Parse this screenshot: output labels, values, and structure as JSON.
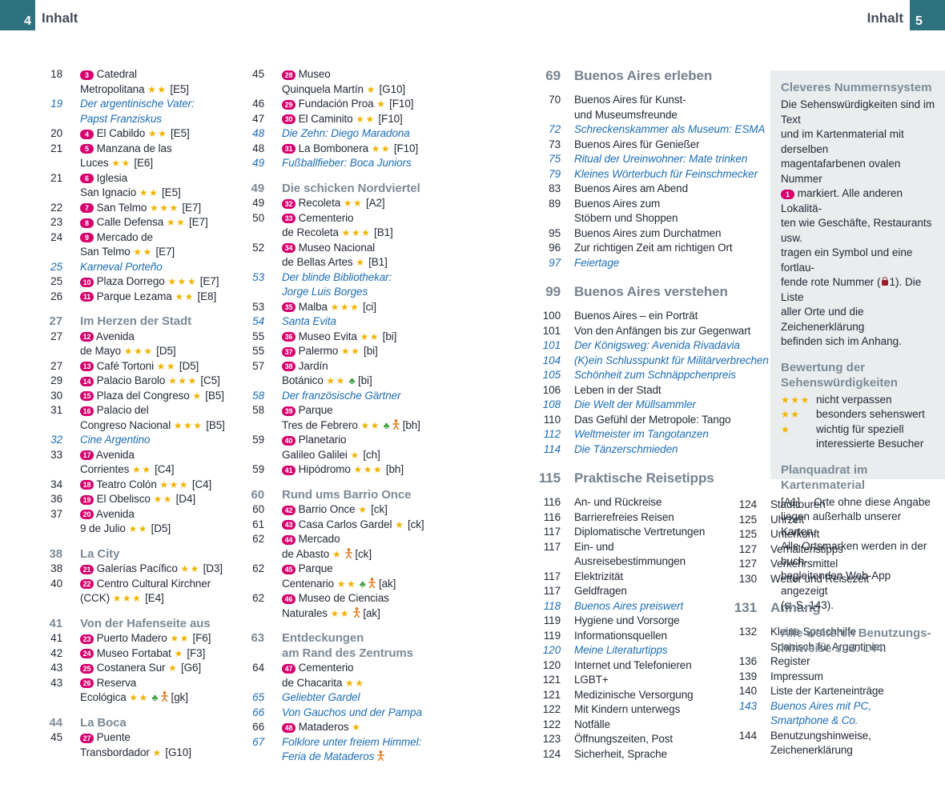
{
  "header": {
    "left_page_number": "4",
    "left_label": "Inhalt",
    "right_label": "Inhalt",
    "right_page_number": "5"
  },
  "colors": {
    "teal": "#2e727f",
    "magenta_badge": "#d5006d",
    "star_gold": "#f0b400",
    "feature_blue": "#1e6eb3",
    "section_gray": "#7d8a96",
    "nature_green": "#3f9d3f",
    "family_orange": "#e07b20",
    "panel_bg": "#e9edee",
    "lock_red": "#9d1b2c"
  },
  "toc": {
    "columns": [
      [
        {
          "page": "18",
          "style": "entry",
          "lines": [
            "{n3} Catedral",
            "Metropolitana {s2} [E5]"
          ]
        },
        {
          "page": "19",
          "style": "feature",
          "lines": [
            "Der argentinische Vater:",
            "Papst Franziskus"
          ]
        },
        {
          "page": "20",
          "style": "entry",
          "lines": [
            "{n4} El Cabildo {s2} [E5]"
          ]
        },
        {
          "page": "21",
          "style": "entry",
          "lines": [
            "{n5} Manzana de las",
            "Luces {s2} [E6]"
          ]
        },
        {
          "page": "21",
          "style": "entry",
          "lines": [
            "{n6} Iglesia",
            "San Ignacio {s2} [E5]"
          ]
        },
        {
          "page": "22",
          "style": "entry",
          "lines": [
            "{n7} San Telmo {s3} [E7]"
          ]
        },
        {
          "page": "23",
          "style": "entry",
          "lines": [
            "{n8} Calle Defensa {s2} [E7]"
          ]
        },
        {
          "page": "24",
          "style": "entry",
          "lines": [
            "{n9} Mercado de",
            "San Telmo {s2} [E7]"
          ]
        },
        {
          "page": "25",
          "style": "feature",
          "lines": [
            "Karneval Porteño"
          ]
        },
        {
          "page": "25",
          "style": "entry",
          "lines": [
            "{n10} Plaza Dorrego {s3} [E7]"
          ]
        },
        {
          "page": "26",
          "style": "entry",
          "lines": [
            "{n11} Parque Lezama {s2} [E8]"
          ]
        },
        {
          "page": "27",
          "style": "header",
          "lines": [
            "Im Herzen der Stadt"
          ]
        },
        {
          "page": "27",
          "style": "entry",
          "lines": [
            "{n12} Avenida",
            "de Mayo {s3} [D5]"
          ]
        },
        {
          "page": "27",
          "style": "entry",
          "lines": [
            "{n13} Café Tortoni {s2} [D5]"
          ]
        },
        {
          "page": "29",
          "style": "entry",
          "lines": [
            "{n14} Palacio Barolo {s3} [C5]"
          ]
        },
        {
          "page": "30",
          "style": "entry",
          "lines": [
            "{n15} Plaza del Congreso {s1} [B5]"
          ]
        },
        {
          "page": "31",
          "style": "entry",
          "lines": [
            "{n16} Palacio del",
            "Congreso Nacional {s3} [B5]"
          ]
        },
        {
          "page": "32",
          "style": "feature",
          "lines": [
            "Cine Argentino"
          ]
        },
        {
          "page": "33",
          "style": "entry",
          "lines": [
            "{n17} Avenida",
            "Corrientes {s2} [C4]"
          ]
        },
        {
          "page": "34",
          "style": "entry",
          "lines": [
            "{n18} Teatro Colón {s3} [C4]"
          ]
        },
        {
          "page": "36",
          "style": "entry",
          "lines": [
            "{n19} El Obelisco {s2} [D4]"
          ]
        },
        {
          "page": "37",
          "style": "entry",
          "lines": [
            "{n20} Avenida",
            "9 de Julio {s2} [D5]"
          ]
        },
        {
          "page": "38",
          "style": "header",
          "lines": [
            "La City"
          ]
        },
        {
          "page": "38",
          "style": "entry",
          "lines": [
            "{n21} Galerías Pacífico {s2} [D3]"
          ]
        },
        {
          "page": "40",
          "style": "entry",
          "lines": [
            "{n22} Centro Cultural Kirchner",
            "(CCK) {s3} [E4]"
          ]
        },
        {
          "page": "41",
          "style": "header",
          "lines": [
            "Von der Hafenseite aus"
          ]
        },
        {
          "page": "41",
          "style": "entry",
          "lines": [
            "{n23} Puerto Madero {s2} [F6]"
          ]
        },
        {
          "page": "42",
          "style": "entry",
          "lines": [
            "{n24} Museo Fortabat {s1} [F3]"
          ]
        },
        {
          "page": "43",
          "style": "entry",
          "lines": [
            "{n25} Costanera Sur {s1} [G6]"
          ]
        },
        {
          "page": "43",
          "style": "entry",
          "lines": [
            "{n26} Reserva",
            "Ecológica {s2} {g} {p} [gk]"
          ]
        },
        {
          "page": "44",
          "style": "header",
          "lines": [
            "La Boca"
          ]
        },
        {
          "page": "45",
          "style": "entry",
          "lines": [
            "{n27} Puente",
            "Transbordador {s1} [G10]"
          ]
        }
      ],
      [
        {
          "page": "45",
          "style": "entry",
          "lines": [
            "{n28} Museo",
            "Quinquela Martín {s1} [G10]"
          ]
        },
        {
          "page": "46",
          "style": "entry",
          "lines": [
            "{n29} Fundación Proa {s1} [F10]"
          ]
        },
        {
          "page": "47",
          "style": "entry",
          "lines": [
            "{n30} El Caminito {s2} [F10]"
          ]
        },
        {
          "page": "48",
          "style": "feature",
          "lines": [
            "Die Zehn: Diego Maradona"
          ]
        },
        {
          "page": "48",
          "style": "entry",
          "lines": [
            "{n31} La Bombonera {s2} [F10]"
          ]
        },
        {
          "page": "49",
          "style": "feature",
          "lines": [
            "Fußballfieber: Boca Juniors"
          ]
        },
        {
          "page": "49",
          "style": "header",
          "lines": [
            "Die schicken Nordviertel"
          ]
        },
        {
          "page": "49",
          "style": "entry",
          "lines": [
            "{n32} Recoleta {s2} [A2]"
          ]
        },
        {
          "page": "50",
          "style": "entry",
          "lines": [
            "{n33} Cementerio",
            "de Recoleta {s3} [B1]"
          ]
        },
        {
          "page": "52",
          "style": "entry",
          "lines": [
            "{n34} Museo Nacional",
            "de Bellas Artes {s1} [B1]"
          ]
        },
        {
          "page": "53",
          "style": "feature",
          "lines": [
            "Der blinde Bibliothekar:",
            "Jorge Luis Borges"
          ]
        },
        {
          "page": "53",
          "style": "entry",
          "lines": [
            "{n35} Malba {s3} [ci]"
          ]
        },
        {
          "page": "54",
          "style": "feature",
          "lines": [
            "Santa Evita"
          ]
        },
        {
          "page": "55",
          "style": "entry",
          "lines": [
            "{n36} Museo Evita {s2} [bi]"
          ]
        },
        {
          "page": "55",
          "style": "entry",
          "lines": [
            "{n37} Palermo {s2} [bi]"
          ]
        },
        {
          "page": "57",
          "style": "entry",
          "lines": [
            "{n38} Jardín",
            "Botánico {s2} {g} [bi]"
          ]
        },
        {
          "page": "58",
          "style": "feature",
          "lines": [
            "Der französische Gärtner"
          ]
        },
        {
          "page": "58",
          "style": "entry",
          "lines": [
            "{n39} Parque",
            "Tres de Febrero {s2} {g} {p} [bh]"
          ]
        },
        {
          "page": "59",
          "style": "entry",
          "lines": [
            "{n40} Planetario",
            "Galileo Galilei {s1} [ch]"
          ]
        },
        {
          "page": "59",
          "style": "entry",
          "lines": [
            "{n41} Hipódromo {s3} [bh]"
          ]
        },
        {
          "page": "60",
          "style": "header",
          "lines": [
            "Rund ums Barrio Once"
          ]
        },
        {
          "page": "60",
          "style": "entry",
          "lines": [
            "{n42} Barrio Once {s1} [ck]"
          ]
        },
        {
          "page": "61",
          "style": "entry",
          "lines": [
            "{n43} Casa Carlos Gardel {s1} [ck]"
          ]
        },
        {
          "page": "62",
          "style": "entry",
          "lines": [
            "{n44} Mercado",
            "de Abasto {s1} {p} [ck]"
          ]
        },
        {
          "page": "62",
          "style": "entry",
          "lines": [
            "{n45} Parque",
            "Centenario {s2} {g} {p} [ak]"
          ]
        },
        {
          "page": "62",
          "style": "entry",
          "lines": [
            "{n46} Museo de Ciencias",
            "Naturales {s2} {p} [ak]"
          ]
        },
        {
          "page": "63",
          "style": "header",
          "lines": [
            "Entdeckungen",
            "am Rand des Zentrums"
          ]
        },
        {
          "page": "64",
          "style": "entry",
          "lines": [
            "{n47} Cementerio",
            "de Chacarita {s2}"
          ]
        },
        {
          "page": "65",
          "style": "feature",
          "lines": [
            "Geliebter Gardel"
          ]
        },
        {
          "page": "66",
          "style": "feature",
          "lines": [
            "Von Gauchos und der Pampa"
          ]
        },
        {
          "page": "66",
          "style": "entry",
          "lines": [
            "{n48} Mataderos {s1}"
          ]
        },
        {
          "page": "67",
          "style": "feature",
          "lines": [
            "Folklore unter freiem Himmel:",
            "Feria de Mataderos {p}"
          ]
        }
      ],
      [
        {
          "page": "69",
          "style": "section",
          "lines": [
            "Buenos Aires erleben"
          ]
        },
        {
          "page": "70",
          "style": "plain",
          "lines": [
            "Buenos Aires für Kunst-",
            "und Museumsfreunde"
          ]
        },
        {
          "page": "72",
          "style": "feature",
          "lines": [
            "Schreckenskammer als Museum: ESMA"
          ]
        },
        {
          "page": "73",
          "style": "plain",
          "lines": [
            "Buenos Aires für Genießer"
          ]
        },
        {
          "page": "75",
          "style": "feature",
          "lines": [
            "Ritual der Ureinwohner: Mate trinken"
          ]
        },
        {
          "page": "79",
          "style": "feature",
          "lines": [
            "Kleines Wörterbuch für Feinschmecker"
          ]
        },
        {
          "page": "83",
          "style": "plain",
          "lines": [
            "Buenos Aires am Abend"
          ]
        },
        {
          "page": "89",
          "style": "plain",
          "lines": [
            "Buenos Aires zum",
            "Stöbern und Shoppen"
          ]
        },
        {
          "page": "95",
          "style": "plain",
          "lines": [
            "Buenos Aires zum Durchatmen"
          ]
        },
        {
          "page": "96",
          "style": "plain",
          "lines": [
            "Zur richtigen Zeit am richtigen Ort"
          ]
        },
        {
          "page": "97",
          "style": "feature",
          "lines": [
            "Feiertage"
          ]
        },
        {
          "page": "99",
          "style": "section",
          "lines": [
            "Buenos Aires verstehen"
          ]
        },
        {
          "page": "100",
          "style": "plain",
          "lines": [
            "Buenos Aires – ein Porträt"
          ]
        },
        {
          "page": "101",
          "style": "plain",
          "lines": [
            "Von den Anfängen bis zur Gegenwart"
          ]
        },
        {
          "page": "101",
          "style": "feature",
          "lines": [
            "Der Königsweg: Avenida Rivadavia"
          ]
        },
        {
          "page": "104",
          "style": "feature",
          "lines": [
            "(K)ein Schlusspunkt für Militärverbrechen"
          ]
        },
        {
          "page": "105",
          "style": "feature",
          "lines": [
            "Schönheit zum Schnäppchenpreis"
          ]
        },
        {
          "page": "106",
          "style": "plain",
          "lines": [
            "Leben in der Stadt"
          ]
        },
        {
          "page": "108",
          "style": "feature",
          "lines": [
            "Die Welt der Müllsammler"
          ]
        },
        {
          "page": "110",
          "style": "plain",
          "lines": [
            "Das Gefühl der Metropole: Tango"
          ]
        },
        {
          "page": "112",
          "style": "feature",
          "lines": [
            "Weltmeister im Tangotanzen"
          ]
        },
        {
          "page": "114",
          "style": "feature",
          "lines": [
            "Die Tänzerschmieden"
          ]
        },
        {
          "page": "115",
          "style": "section",
          "lines": [
            "Praktische Reisetipps"
          ]
        },
        {
          "page": "116",
          "style": "plain",
          "lines": [
            "An- und Rückreise"
          ]
        },
        {
          "page": "116",
          "style": "plain",
          "lines": [
            "Barrierefreies Reisen"
          ]
        },
        {
          "page": "117",
          "style": "plain",
          "lines": [
            "Diplomatische Vertretungen"
          ]
        },
        {
          "page": "117",
          "style": "plain",
          "lines": [
            "Ein- und",
            "Ausreisebestimmungen"
          ]
        },
        {
          "page": "117",
          "style": "plain",
          "lines": [
            "Elektrizität"
          ]
        },
        {
          "page": "117",
          "style": "plain",
          "lines": [
            "Geldfragen"
          ]
        },
        {
          "page": "118",
          "style": "feature",
          "lines": [
            "Buenos Aires preiswert"
          ]
        },
        {
          "page": "119",
          "style": "plain",
          "lines": [
            "Hygiene und Vorsorge"
          ]
        },
        {
          "page": "119",
          "style": "plain",
          "lines": [
            "Informationsquellen"
          ]
        },
        {
          "page": "120",
          "style": "feature",
          "lines": [
            "Meine Literaturtipps"
          ]
        },
        {
          "page": "120",
          "style": "plain",
          "lines": [
            "Internet und Telefonieren"
          ]
        },
        {
          "page": "121",
          "style": "plain",
          "lines": [
            "LGBT+"
          ]
        },
        {
          "page": "121",
          "style": "plain",
          "lines": [
            "Medizinische Versorgung"
          ]
        },
        {
          "page": "122",
          "style": "plain",
          "lines": [
            "Mit Kindern unterwegs"
          ]
        },
        {
          "page": "122",
          "style": "plain",
          "lines": [
            "Notfälle"
          ]
        },
        {
          "page": "123",
          "style": "plain",
          "lines": [
            "Öffnungszeiten, Post"
          ]
        },
        {
          "page": "124",
          "style": "plain",
          "lines": [
            "Sicherheit, Sprache"
          ]
        }
      ],
      [
        {
          "page": "124",
          "style": "plain",
          "lines": [
            "Stadttouren"
          ]
        },
        {
          "page": "125",
          "style": "plain",
          "lines": [
            "Uhrzeit"
          ]
        },
        {
          "page": "125",
          "style": "plain",
          "lines": [
            "Unterkunft"
          ]
        },
        {
          "page": "127",
          "style": "plain",
          "lines": [
            "Verhaltenstipps"
          ]
        },
        {
          "page": "127",
          "style": "plain",
          "lines": [
            "Verkehrsmittel"
          ]
        },
        {
          "page": "130",
          "style": "plain",
          "lines": [
            "Wetter und Reisezeit"
          ]
        },
        {
          "page": "131",
          "style": "section",
          "lines": [
            "Anhang"
          ]
        },
        {
          "page": "132",
          "style": "plain",
          "lines": [
            "Kleine Sprachhilfe",
            "Spanisch für Argentinien"
          ]
        },
        {
          "page": "136",
          "style": "plain",
          "lines": [
            "Register"
          ]
        },
        {
          "page": "139",
          "style": "plain",
          "lines": [
            "Impressum"
          ]
        },
        {
          "page": "140",
          "style": "plain",
          "lines": [
            "Liste der Karteneinträge"
          ]
        },
        {
          "page": "143",
          "style": "feature",
          "lines": [
            "Buenos Aires mit PC,",
            "Smartphone & Co."
          ]
        },
        {
          "page": "144",
          "style": "plain",
          "lines": [
            "Benutzungshinweise,",
            "Zeichenerklärung"
          ]
        }
      ]
    ]
  },
  "sidebar": {
    "blocks": [
      {
        "type": "heading",
        "text": "Cleveres Nummernsystem"
      },
      {
        "type": "paragraph",
        "text": "Die Sehenswürdigkeiten sind im Text\nund im Kartenmaterial mit derselben\nmagentafarbenen ovalen Nummer\n{n1} markiert. Alle anderen Lokalitä-\nten wie Geschäfte, Restaurants usw.\ntragen ein Symbol und eine fortlau-\nfende rote Nummer ({lock}1). Die Liste\naller Orte und die Zeichenerklärung\nbefinden sich im Anhang."
      },
      {
        "type": "heading",
        "text": "Bewertung der\nSehenswürdigkeiten"
      },
      {
        "type": "legend",
        "rows": [
          {
            "stars": 3,
            "label": "nicht verpassen"
          },
          {
            "stars": 2,
            "label": "besonders sehenswert"
          },
          {
            "stars": 1,
            "label": "wichtig für speziell\ninteressierte Besucher"
          }
        ]
      },
      {
        "type": "heading",
        "text": "Planquadrat im Kartenmaterial"
      },
      {
        "type": "paragraph",
        "text": "[A1]  Orte ohne diese Angabe\nliegen außerhalb unserer Karten.\nAlle Ortsmarken werden in der buch-\nbegleitenden Web-App angezeigt\n(s. S. 143)."
      },
      {
        "type": "note",
        "text": "Alle weiteren Benutzungs-\nhinweise s. S. 144."
      }
    ]
  }
}
